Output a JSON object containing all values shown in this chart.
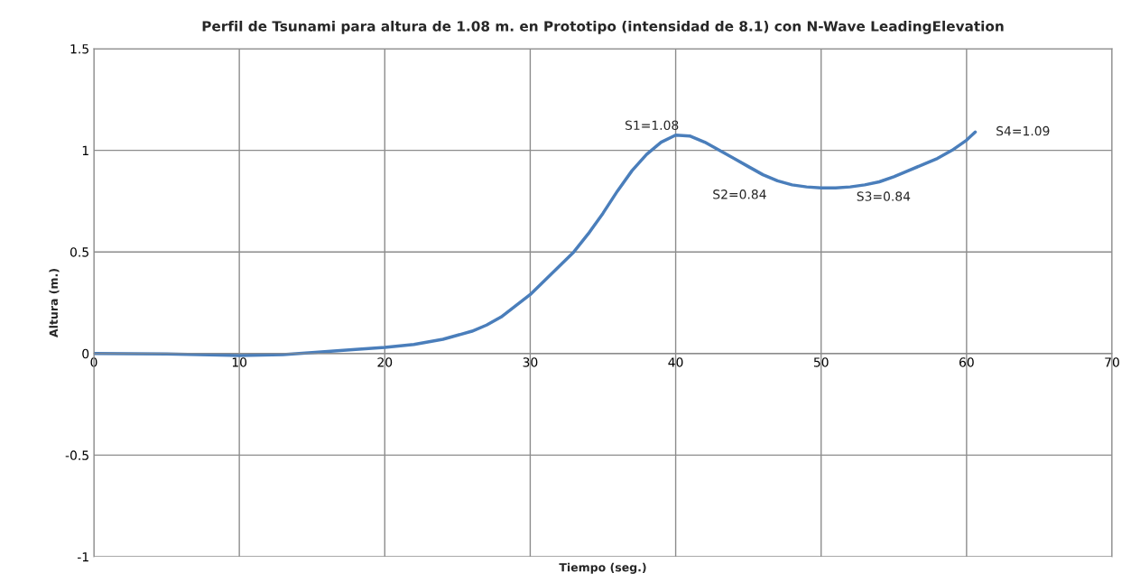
{
  "chart_data": {
    "type": "line",
    "title": "Perfil de Tsunami para altura de 1.08 m. en Prototipo (intensidad de 8.1) con N-Wave LeadingElevation",
    "xlabel": "Tiempo (seg.)",
    "ylabel": "Altura (m.)",
    "x": [
      0,
      5,
      10,
      13,
      15,
      18,
      20,
      22,
      24,
      26,
      27,
      28,
      30,
      31,
      32,
      33,
      34,
      35,
      36,
      37,
      38,
      39,
      40,
      41,
      42,
      43,
      44,
      45,
      46,
      47,
      48,
      49,
      50,
      51,
      52,
      53,
      54,
      55,
      56,
      57,
      58,
      59,
      60,
      60.6
    ],
    "series": [
      {
        "color": "#4a7ebb",
        "values": [
          0,
          -0.002,
          -0.01,
          -0.005,
          0.005,
          0.02,
          0.03,
          0.045,
          0.07,
          0.11,
          0.14,
          0.18,
          0.29,
          0.36,
          0.43,
          0.5,
          0.59,
          0.69,
          0.8,
          0.9,
          0.98,
          1.04,
          1.075,
          1.07,
          1.04,
          1.0,
          0.96,
          0.92,
          0.88,
          0.85,
          0.83,
          0.82,
          0.815,
          0.815,
          0.82,
          0.83,
          0.845,
          0.87,
          0.9,
          0.93,
          0.96,
          1.0,
          1.05,
          1.09
        ]
      }
    ],
    "xlim": [
      0,
      70
    ],
    "xticks": [
      0,
      10,
      20,
      30,
      40,
      50,
      60,
      70
    ],
    "ylim": [
      -1,
      1.5
    ],
    "yticks": [
      -1,
      -0.5,
      0,
      0.5,
      1,
      1.5
    ],
    "grid": true,
    "marker": "none",
    "line_style": "solid",
    "annotations": [
      {
        "text": "S1=1.08",
        "x": 40,
        "y": 1.075
      },
      {
        "text": "S2=0.84",
        "x": 45,
        "y": 0.92
      },
      {
        "text": "S3=0.84",
        "x": 53,
        "y": 0.83
      },
      {
        "text": "S4=1.09",
        "x": 60.6,
        "y": 1.09
      }
    ]
  }
}
